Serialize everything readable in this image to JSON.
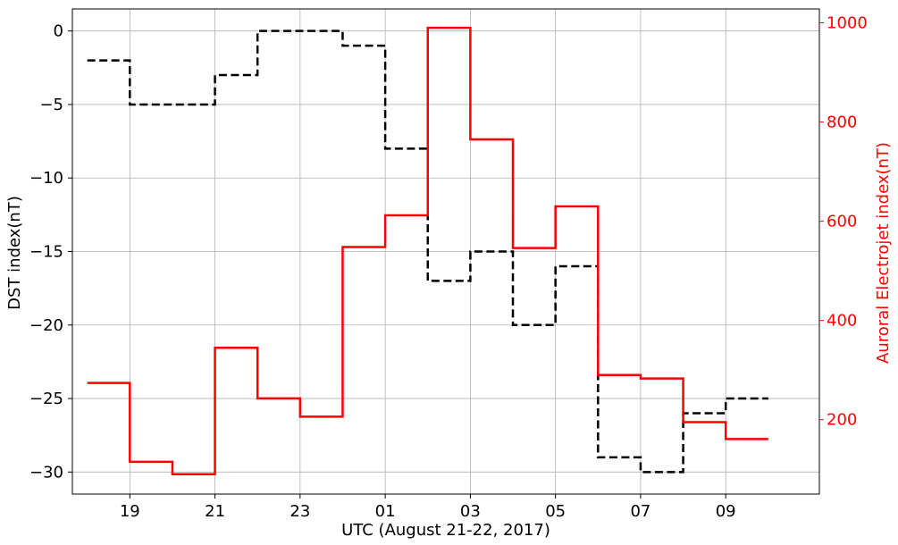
{
  "chart_data": {
    "type": "line",
    "title": "",
    "xlabel": "UTC (August 21-22, 2017)",
    "ylabel_left": "DST index(nT)",
    "ylabel_right": "Auroral Electrojet index(nT)",
    "x_tick_labels": [
      "19",
      "21",
      "23",
      "01",
      "03",
      "05",
      "07",
      "09"
    ],
    "x_tick_hours": [
      19,
      21,
      23,
      25,
      27,
      29,
      31,
      33
    ],
    "xlim_hours": [
      17.65,
      35.2
    ],
    "y_left": {
      "ylim": [
        -31.5,
        1.5
      ],
      "ticks": [
        0,
        -5,
        -10,
        -15,
        -20,
        -25,
        -30
      ],
      "tick_labels": [
        "0",
        "−5",
        "−10",
        "−15",
        "−20",
        "−25",
        "−30"
      ]
    },
    "y_right": {
      "ylim": [
        50,
        1028
      ],
      "ticks": [
        200,
        400,
        600,
        800,
        1000
      ],
      "tick_labels": [
        "200",
        "400",
        "600",
        "800",
        "1000"
      ]
    },
    "grid": true,
    "step_edges_hours": [
      18,
      19,
      20,
      21,
      22,
      23,
      24,
      25,
      26,
      27,
      28,
      29,
      30,
      31,
      32,
      33,
      34
    ],
    "series": [
      {
        "axis": "left",
        "style": "dashed",
        "color": "#000000",
        "values": [
          -2,
          -5,
          -5,
          -3,
          0,
          0,
          -1,
          -8,
          -17,
          -15,
          -20,
          -16,
          -29,
          -30,
          -26,
          -25
        ]
      },
      {
        "axis": "right",
        "style": "solid",
        "color": "#ff0000",
        "values": [
          274,
          115,
          90,
          345,
          243,
          206,
          548,
          612,
          990,
          765,
          546,
          630,
          290,
          283,
          195,
          161
        ]
      }
    ]
  }
}
